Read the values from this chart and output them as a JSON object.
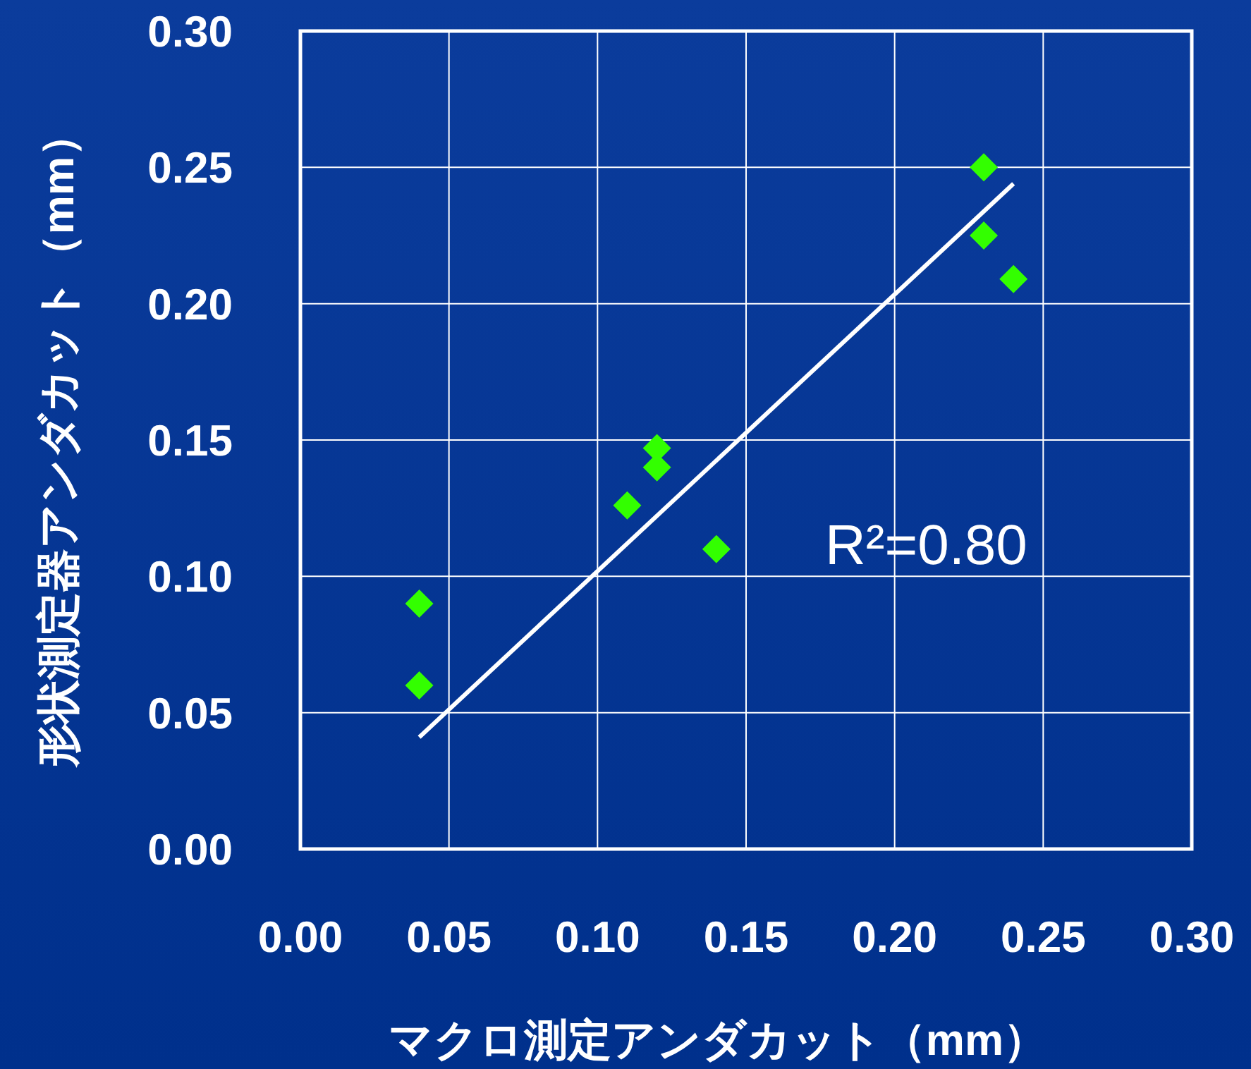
{
  "chart_data": {
    "type": "scatter",
    "xlabel": "マクロ測定アンダカット（mm）",
    "ylabel": "形状測定器アンダカット（mm）",
    "xlim": [
      0,
      0.3
    ],
    "ylim": [
      0,
      0.3
    ],
    "xticks": [
      {
        "value": 0,
        "label": "0.00"
      },
      {
        "value": 0.05,
        "label": "0.05"
      },
      {
        "value": 0.1,
        "label": "0.10"
      },
      {
        "value": 0.15,
        "label": "0.15"
      },
      {
        "value": 0.2,
        "label": "0.20"
      },
      {
        "value": 0.25,
        "label": "0.25"
      },
      {
        "value": 0.3,
        "label": "0.30"
      }
    ],
    "yticks": [
      {
        "value": 0,
        "label": "0.00"
      },
      {
        "value": 0.05,
        "label": "0.05"
      },
      {
        "value": 0.1,
        "label": "0.10"
      },
      {
        "value": 0.15,
        "label": "0.15"
      },
      {
        "value": 0.2,
        "label": "0.20"
      },
      {
        "value": 0.25,
        "label": "0.25"
      },
      {
        "value": 0.3,
        "label": "0.30"
      }
    ],
    "grid": true,
    "series": [
      {
        "type": "scatter",
        "marker": "diamond",
        "color": "#33ff00",
        "x": [
          0.04,
          0.04,
          0.11,
          0.12,
          0.12,
          0.14,
          0.23,
          0.23,
          0.24
        ],
        "values": [
          0.09,
          0.06,
          0.126,
          0.147,
          0.14,
          0.11,
          0.25,
          0.225,
          0.209
        ]
      },
      {
        "type": "line",
        "color": "#ffffff",
        "x": [
          0.04,
          0.24
        ],
        "values": [
          0.041,
          0.244
        ]
      }
    ],
    "annotations": [
      "R²=0.80"
    ]
  }
}
